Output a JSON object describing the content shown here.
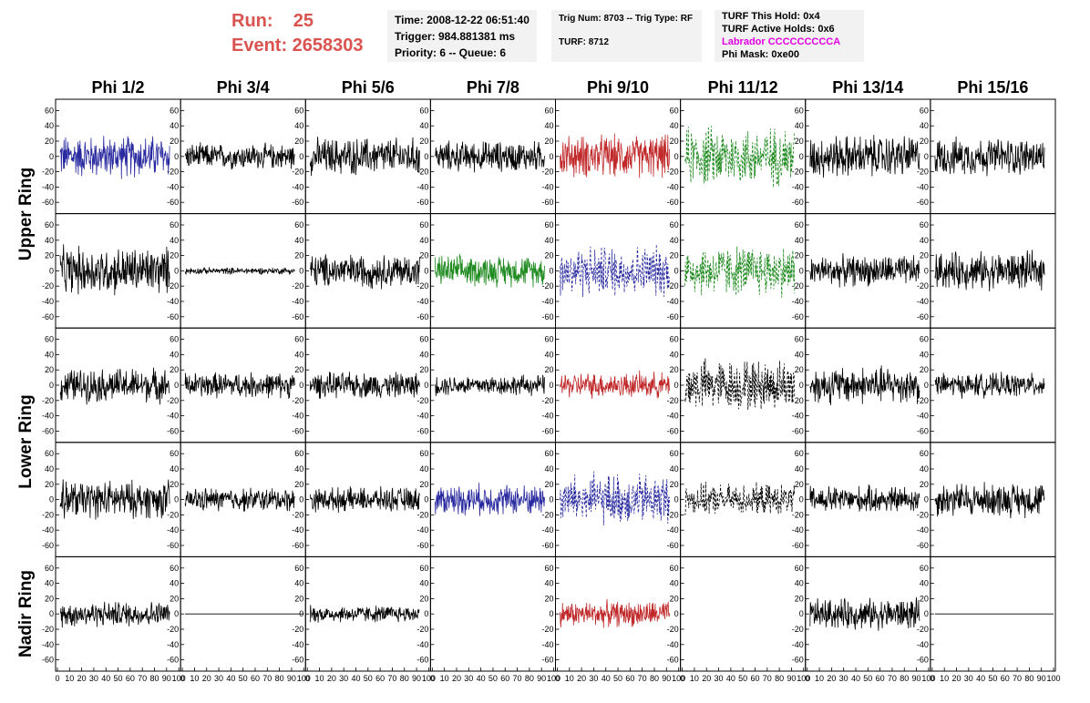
{
  "header": {
    "run_label": "Run:    25",
    "event_label": "Event: 2658303"
  },
  "info_box_1": {
    "time": "Time: 2008-12-22 06:51:40",
    "trigger": "Trigger: 984.881381 ms",
    "priority": "Priority: 6 -- Queue: 6"
  },
  "info_box_2": {
    "trig": "Trig Num: 8703 -- Trig Type: RF",
    "turf": "TURF: 8712"
  },
  "info_box_3": {
    "this_hold": "TURF This Hold: 0x4",
    "active_holds": "TURF Active Holds: 0x6",
    "labrador": "Labrador CCCCCCCCCA",
    "phi_mask": "Phi Mask: 0xe00"
  },
  "colors": {
    "black": "#000000",
    "blue": "#2a2aa0",
    "red": "#c0282a",
    "green": "#1f8a1f",
    "title_red": "#d9534f",
    "magenta": "#e000e0"
  },
  "chart_data": {
    "type": "line",
    "columns": [
      "Phi 1/2",
      "Phi 3/4",
      "Phi 5/6",
      "Phi 7/8",
      "Phi 9/10",
      "Phi 11/12",
      "Phi 13/14",
      "Phi 15/16"
    ],
    "rows": [
      "Upper Ring",
      "Lower Ring",
      "Nadir Ring"
    ],
    "ylim": [
      -70,
      70
    ],
    "xlim": [
      0,
      100
    ],
    "yticks": [
      -60,
      -40,
      -20,
      0,
      20,
      40,
      60
    ],
    "xticks": [
      0,
      10,
      20,
      30,
      40,
      50,
      60,
      70,
      80,
      90,
      100
    ],
    "panels": [
      [
        {
          "color": "blue",
          "style": "solid",
          "amp": 25
        },
        {
          "color": "black",
          "style": "solid",
          "amp": 15
        },
        {
          "color": "black",
          "style": "solid",
          "amp": 22
        },
        {
          "color": "black",
          "style": "solid",
          "amp": 18
        },
        {
          "color": "red",
          "style": "solid",
          "amp": 25
        },
        {
          "color": "green",
          "style": "dashed",
          "amp": 35
        },
        {
          "color": "black",
          "style": "solid",
          "amp": 25
        },
        {
          "color": "black",
          "style": "solid",
          "amp": 22
        }
      ],
      [
        {
          "color": "black",
          "style": "solid",
          "amp": 28
        },
        {
          "color": "black",
          "style": "solid",
          "amp": 4
        },
        {
          "color": "black",
          "style": "solid",
          "amp": 20
        },
        {
          "color": "green",
          "style": "solid",
          "amp": 18
        },
        {
          "color": "blue",
          "style": "dashed",
          "amp": 30
        },
        {
          "color": "green",
          "style": "dashed",
          "amp": 30
        },
        {
          "color": "black",
          "style": "solid",
          "amp": 18
        },
        {
          "color": "black",
          "style": "solid",
          "amp": 22
        }
      ],
      [
        {
          "color": "black",
          "style": "solid",
          "amp": 20
        },
        {
          "color": "black",
          "style": "solid",
          "amp": 15
        },
        {
          "color": "black",
          "style": "solid",
          "amp": 15
        },
        {
          "color": "black",
          "style": "solid",
          "amp": 12
        },
        {
          "color": "red",
          "style": "solid",
          "amp": 15
        },
        {
          "color": "black",
          "style": "dashed",
          "amp": 30
        },
        {
          "color": "black",
          "style": "solid",
          "amp": 22
        },
        {
          "color": "black",
          "style": "solid",
          "amp": 14
        }
      ],
      [
        {
          "color": "black",
          "style": "solid",
          "amp": 22
        },
        {
          "color": "black",
          "style": "solid",
          "amp": 14
        },
        {
          "color": "black",
          "style": "solid",
          "amp": 14
        },
        {
          "color": "blue",
          "style": "solid",
          "amp": 18
        },
        {
          "color": "blue",
          "style": "dashed",
          "amp": 30
        },
        {
          "color": "black",
          "style": "dashed",
          "amp": 18
        },
        {
          "color": "black",
          "style": "solid",
          "amp": 16
        },
        {
          "color": "black",
          "style": "solid",
          "amp": 20
        }
      ],
      [
        {
          "color": "black",
          "style": "solid",
          "amp": 15
        },
        {
          "color": "black",
          "style": "flat",
          "amp": 0
        },
        {
          "color": "black",
          "style": "solid",
          "amp": 10
        },
        null,
        {
          "color": "red",
          "style": "solid",
          "amp": 15
        },
        null,
        {
          "color": "black",
          "style": "solid",
          "amp": 18
        },
        {
          "color": "black",
          "style": "flat",
          "amp": 0
        }
      ]
    ]
  }
}
